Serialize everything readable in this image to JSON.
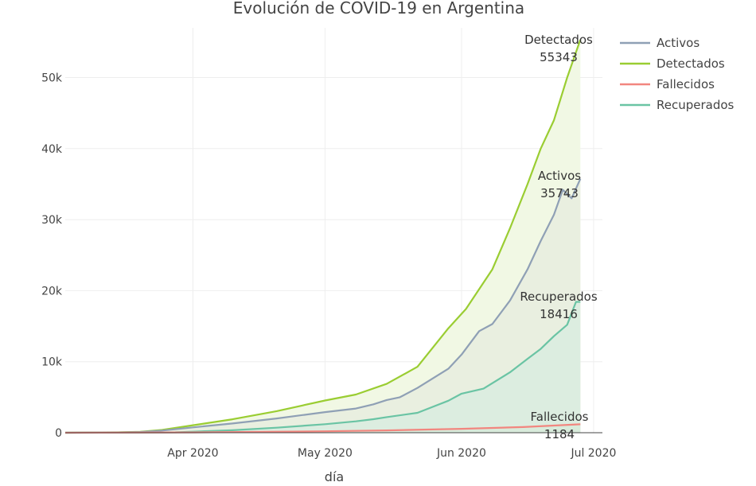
{
  "chart_data": {
    "type": "area",
    "title": "Evolución de COVID-19 en Argentina",
    "xlabel": "día",
    "ylabel": "",
    "x_start": "2020-03-03",
    "xlim": [
      "2020-03-03",
      "2020-07-03"
    ],
    "ylim": [
      0,
      57000
    ],
    "x_ticks": [
      {
        "date": "2020-04-01",
        "label": "Apr 2020"
      },
      {
        "date": "2020-05-01",
        "label": "May 2020"
      },
      {
        "date": "2020-06-01",
        "label": "Jun 2020"
      },
      {
        "date": "2020-07-01",
        "label": "Jul 2020"
      }
    ],
    "y_ticks": [
      {
        "value": 0,
        "label": "0"
      },
      {
        "value": 10000,
        "label": "10k"
      },
      {
        "value": 20000,
        "label": "20k"
      },
      {
        "value": 30000,
        "label": "30k"
      },
      {
        "value": 40000,
        "label": "40k"
      },
      {
        "value": 50000,
        "label": "50k"
      }
    ],
    "grid": true,
    "legend_position": "top-right",
    "series": [
      {
        "name": "Detectados",
        "color": "#9ACD32",
        "fill": "#F1F8E4",
        "end_label": "Detectados",
        "end_value": "55343",
        "points": [
          [
            "2020-03-03",
            1
          ],
          [
            "2020-03-15",
            56
          ],
          [
            "2020-03-20",
            128
          ],
          [
            "2020-03-25",
            387
          ],
          [
            "2020-04-01",
            1054
          ],
          [
            "2020-04-10",
            1894
          ],
          [
            "2020-04-20",
            3031
          ],
          [
            "2020-05-01",
            4532
          ],
          [
            "2020-05-08",
            5371
          ],
          [
            "2020-05-15",
            6879
          ],
          [
            "2020-05-22",
            9283
          ],
          [
            "2020-05-29",
            14702
          ],
          [
            "2020-06-02",
            17415
          ],
          [
            "2020-06-08",
            23000
          ],
          [
            "2020-06-12",
            28764
          ],
          [
            "2020-06-16",
            35000
          ],
          [
            "2020-06-19",
            40000
          ],
          [
            "2020-06-22",
            44000
          ],
          [
            "2020-06-25",
            50000
          ],
          [
            "2020-06-28",
            55343
          ]
        ]
      },
      {
        "name": "Activos",
        "color": "#8FA0B5",
        "fill": "#E9EFE0",
        "end_label": "Activos",
        "end_value": "35743",
        "points": [
          [
            "2020-03-03",
            1
          ],
          [
            "2020-03-15",
            50
          ],
          [
            "2020-03-20",
            100
          ],
          [
            "2020-03-25",
            300
          ],
          [
            "2020-04-01",
            750
          ],
          [
            "2020-04-10",
            1300
          ],
          [
            "2020-04-20",
            2000
          ],
          [
            "2020-05-01",
            2900
          ],
          [
            "2020-05-08",
            3400
          ],
          [
            "2020-05-12",
            4000
          ],
          [
            "2020-05-15",
            4600
          ],
          [
            "2020-05-18",
            5000
          ],
          [
            "2020-05-22",
            6300
          ],
          [
            "2020-05-29",
            9000
          ],
          [
            "2020-06-01",
            11000
          ],
          [
            "2020-06-05",
            14300
          ],
          [
            "2020-06-08",
            15300
          ],
          [
            "2020-06-12",
            18600
          ],
          [
            "2020-06-16",
            23000
          ],
          [
            "2020-06-19",
            27000
          ],
          [
            "2020-06-22",
            30700
          ],
          [
            "2020-06-24",
            34200
          ],
          [
            "2020-06-26",
            33000
          ],
          [
            "2020-06-28",
            35743
          ]
        ]
      },
      {
        "name": "Recuperados",
        "color": "#6AC4A4",
        "fill": "#DCEDE0",
        "end_label": "Recuperados",
        "end_value": "18416",
        "points": [
          [
            "2020-03-03",
            0
          ],
          [
            "2020-03-20",
            20
          ],
          [
            "2020-03-28",
            60
          ],
          [
            "2020-04-01",
            150
          ],
          [
            "2020-04-10",
            350
          ],
          [
            "2020-04-20",
            700
          ],
          [
            "2020-05-01",
            1200
          ],
          [
            "2020-05-08",
            1600
          ],
          [
            "2020-05-12",
            1900
          ],
          [
            "2020-05-15",
            2200
          ],
          [
            "2020-05-22",
            2800
          ],
          [
            "2020-05-29",
            4500
          ],
          [
            "2020-06-01",
            5500
          ],
          [
            "2020-06-06",
            6200
          ],
          [
            "2020-06-12",
            8500
          ],
          [
            "2020-06-16",
            10400
          ],
          [
            "2020-06-19",
            11800
          ],
          [
            "2020-06-22",
            13600
          ],
          [
            "2020-06-25",
            15200
          ],
          [
            "2020-06-27",
            18416
          ],
          [
            "2020-06-28",
            18416
          ]
        ]
      },
      {
        "name": "Fallecidos",
        "color": "#F2867F",
        "fill": "#D8EBDB",
        "end_label": "Fallecidos",
        "end_value": "1184",
        "points": [
          [
            "2020-03-03",
            0
          ],
          [
            "2020-04-01",
            40
          ],
          [
            "2020-05-01",
            200
          ],
          [
            "2020-05-15",
            330
          ],
          [
            "2020-06-01",
            550
          ],
          [
            "2020-06-15",
            800
          ],
          [
            "2020-06-28",
            1184
          ]
        ]
      }
    ],
    "legend": [
      "Activos",
      "Detectados",
      "Fallecidos",
      "Recuperados"
    ]
  }
}
